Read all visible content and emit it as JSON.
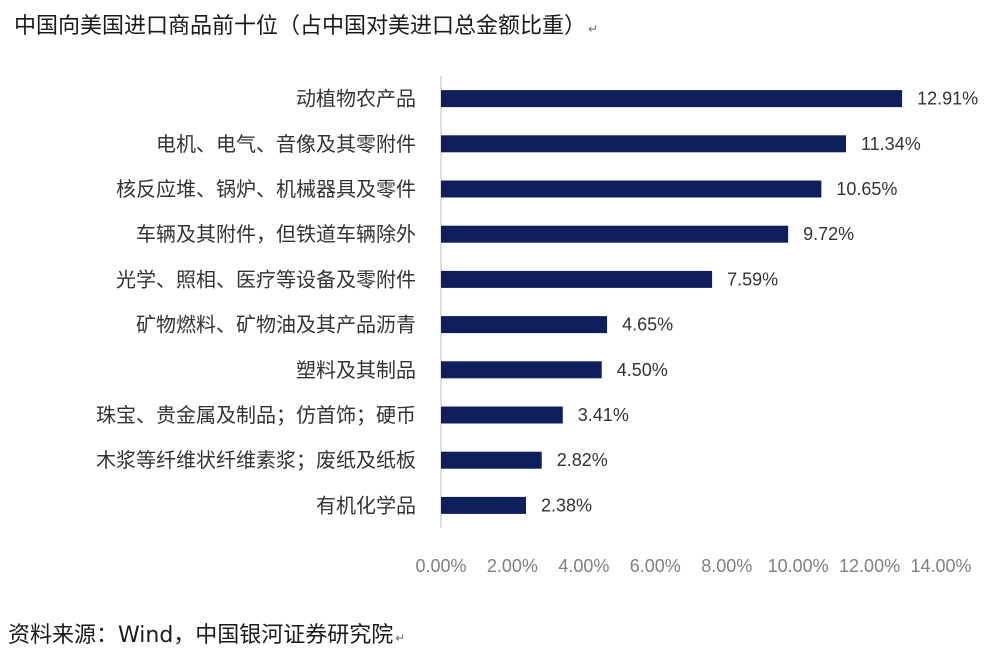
{
  "title": "中国向美国进口商品前十位（占中国对美进口总金额比重）",
  "source": "资料来源：Wind，中国银河证券研究院",
  "return_mark": "↵",
  "bar_color": "#0f1f5c",
  "chart_data": {
    "type": "bar",
    "orientation": "horizontal",
    "categories": [
      "动植物农产品",
      "电机、电气、音像及其零附件",
      "核反应堆、锅炉、机械器具及零件",
      "车辆及其附件，但铁道车辆除外",
      "光学、照相、医疗等设备及零附件",
      "矿物燃料、矿物油及其产品沥青",
      "塑料及其制品",
      "珠宝、贵金属及制品；仿首饰；硬币",
      "木浆等纤维状纤维素浆；废纸及纸板",
      "有机化学品"
    ],
    "values": [
      12.91,
      11.34,
      10.65,
      9.72,
      7.59,
      4.65,
      4.5,
      3.41,
      2.82,
      2.38
    ],
    "value_labels": [
      "12.91%",
      "11.34%",
      "10.65%",
      "9.72%",
      "7.59%",
      "4.65%",
      "4.50%",
      "3.41%",
      "2.82%",
      "2.38%"
    ],
    "xlim": [
      0,
      14
    ],
    "x_ticks": [
      0,
      2,
      4,
      6,
      8,
      10,
      12,
      14
    ],
    "x_tick_labels": [
      "0.00%",
      "2.00%",
      "4.00%",
      "6.00%",
      "8.00%",
      "10.00%",
      "12.00%",
      "14.00%"
    ],
    "grid": false,
    "legend": "none"
  }
}
